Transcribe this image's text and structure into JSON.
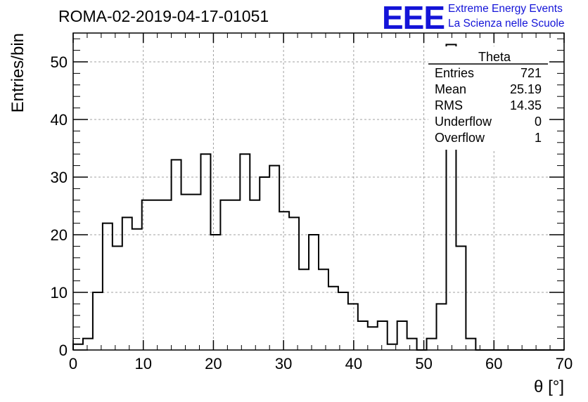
{
  "header": {
    "title": "ROMA-02-2019-04-17-01051",
    "logo_text": "EEE",
    "logo_line1": "Extreme Energy Events",
    "logo_line2": "La Scienza nelle Scuole"
  },
  "colors": {
    "logo": "#1414d8",
    "histogram": "#000000",
    "grid": "#a0a0a0"
  },
  "stats": {
    "name": "Theta",
    "rows": [
      {
        "label": "Entries",
        "value": "721"
      },
      {
        "label": "Mean",
        "value": "25.19"
      },
      {
        "label": "RMS",
        "value": "14.35"
      },
      {
        "label": "Underflow",
        "value": "0"
      },
      {
        "label": "Overflow",
        "value": "1"
      }
    ]
  },
  "chart_data": {
    "type": "bar",
    "style": "step-histogram",
    "title": "ROMA-02-2019-04-17-01051",
    "xlabel": "θ [°]",
    "ylabel": "Entries/bin",
    "xlim": [
      0,
      70
    ],
    "ylim": [
      0,
      55
    ],
    "grid": true,
    "bin_width": 1.4,
    "bin_edges_start": 0,
    "values": [
      1,
      2,
      10,
      22,
      18,
      23,
      21,
      26,
      26,
      26,
      33,
      27,
      27,
      34,
      20,
      26,
      26,
      34,
      26,
      30,
      32,
      24,
      23,
      14,
      20,
      14,
      11,
      10,
      8,
      5,
      4,
      5,
      1,
      5,
      2,
      0,
      2,
      8,
      53,
      18,
      2,
      0,
      0,
      0,
      0,
      0,
      0,
      0,
      0,
      0
    ],
    "x_ticks": [
      "0",
      "10",
      "20",
      "30",
      "40",
      "50",
      "60",
      "70"
    ],
    "y_ticks": [
      "0",
      "10",
      "20",
      "30",
      "40",
      "50"
    ],
    "legend": "top-right"
  }
}
